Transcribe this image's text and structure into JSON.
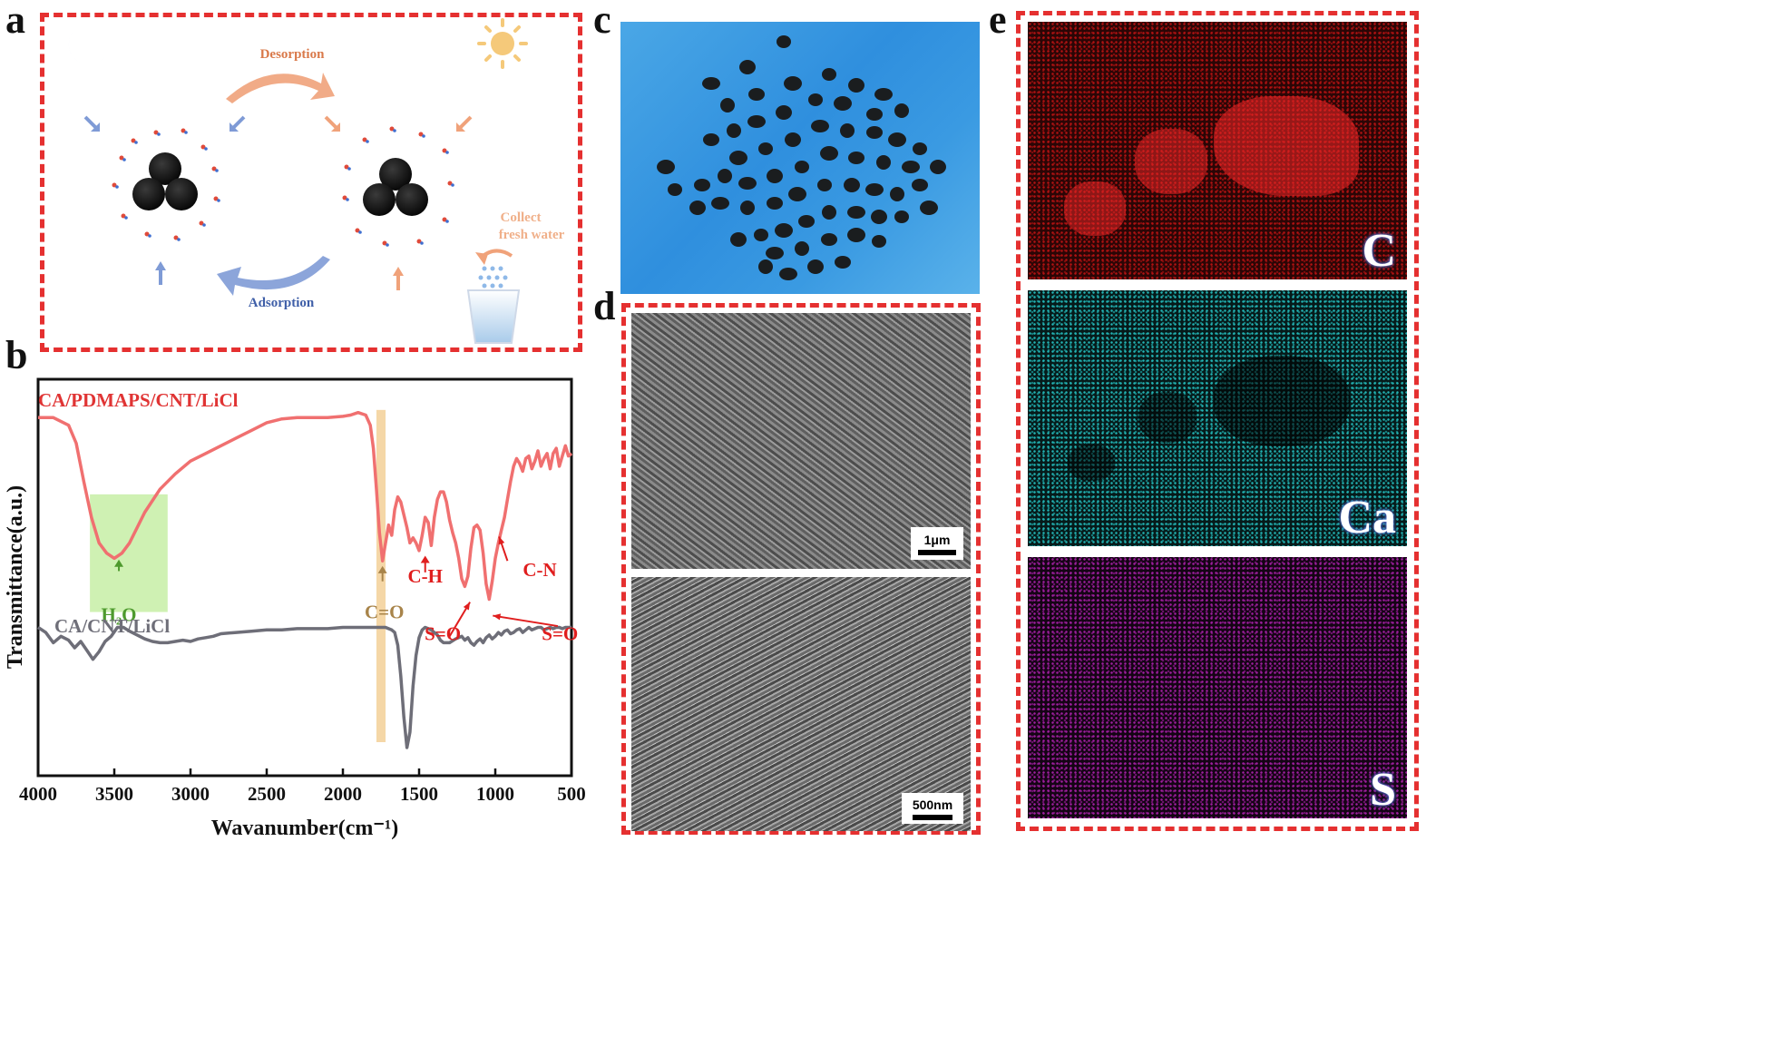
{
  "panels": {
    "a": "a",
    "b": "b",
    "c": "c",
    "d": "d",
    "e": "e"
  },
  "schematic": {
    "desorption": "Desorption",
    "adsorption": "Adsorption",
    "collect": "Collect",
    "fresh_water": "fresh water",
    "colors": {
      "desorption_arrow": "#f0a27a",
      "adsorption_arrow": "#7f9bd6",
      "frame": "#e53030"
    }
  },
  "sem": {
    "top_scale": "1μm",
    "bottom_scale": "500nm"
  },
  "eds_maps": [
    {
      "element": "C",
      "color": "#c41414"
    },
    {
      "element": "Ca",
      "color": "#23b5b5"
    },
    {
      "element": "S",
      "color": "#a01fa0"
    }
  ],
  "chart_data": {
    "type": "line",
    "xlabel": "Wavanumber(cm⁻¹)",
    "ylabel": "Transmittance(a.u.)",
    "xlim": [
      4000,
      500
    ],
    "x_reversed": true,
    "xticks": [
      4000,
      3500,
      3000,
      2500,
      2000,
      1500,
      1000,
      500
    ],
    "y_ticks_shown": false,
    "series": [
      {
        "name": "CA/PDMAPS/CNT/LiCl",
        "color": "#f07070",
        "x": [
          4000,
          3900,
          3800,
          3750,
          3700,
          3650,
          3600,
          3550,
          3500,
          3450,
          3400,
          3350,
          3300,
          3200,
          3100,
          3000,
          2900,
          2800,
          2700,
          2600,
          2500,
          2400,
          2300,
          2200,
          2100,
          2000,
          1950,
          1900,
          1850,
          1820,
          1800,
          1780,
          1760,
          1740,
          1720,
          1700,
          1680,
          1660,
          1640,
          1620,
          1600,
          1580,
          1560,
          1540,
          1520,
          1500,
          1480,
          1460,
          1440,
          1420,
          1400,
          1380,
          1360,
          1340,
          1320,
          1300,
          1280,
          1260,
          1240,
          1220,
          1200,
          1180,
          1160,
          1140,
          1120,
          1100,
          1080,
          1060,
          1040,
          1020,
          1000,
          980,
          960,
          940,
          920,
          900,
          880,
          860,
          840,
          820,
          800,
          780,
          760,
          740,
          720,
          700,
          680,
          660,
          640,
          620,
          600,
          580,
          560,
          540,
          520,
          500
        ],
        "y": [
          9.5,
          9.5,
          9.2,
          8.5,
          7.0,
          5.6,
          4.6,
          4.2,
          4.0,
          4.2,
          4.6,
          5.2,
          5.8,
          6.7,
          7.3,
          7.8,
          8.1,
          8.4,
          8.7,
          9.0,
          9.3,
          9.45,
          9.5,
          9.5,
          9.5,
          9.55,
          9.6,
          9.7,
          9.6,
          9.2,
          8.3,
          6.7,
          5.0,
          3.9,
          4.6,
          5.3,
          4.9,
          5.9,
          6.4,
          6.2,
          5.7,
          5.2,
          4.6,
          4.8,
          4.6,
          4.3,
          4.9,
          5.6,
          5.4,
          4.5,
          5.6,
          6.3,
          6.6,
          6.6,
          6.2,
          5.5,
          5.0,
          4.6,
          4.0,
          3.2,
          2.9,
          3.3,
          4.4,
          5.2,
          5.3,
          5.1,
          4.2,
          3.0,
          2.4,
          3.1,
          4.0,
          4.6,
          5.1,
          5.6,
          6.3,
          7.0,
          7.6,
          7.9,
          7.7,
          7.4,
          7.9,
          8.0,
          7.5,
          7.8,
          8.2,
          7.6,
          7.9,
          8.1,
          7.5,
          8.1,
          8.3,
          7.6,
          8.0,
          8.4,
          8.0,
          8.1
        ],
        "annotations": [
          {
            "label": "H₂O",
            "x": 3470
          },
          {
            "label": "C=O",
            "x": 1740
          },
          {
            "label": "C-H",
            "x": 1460
          },
          {
            "label": "S=O",
            "x": 1190
          },
          {
            "label": "S=O",
            "x": 1040
          },
          {
            "label": "C-N",
            "x": 970
          }
        ]
      },
      {
        "name": "CA/CNT/LiCl",
        "color": "#6e6e78",
        "x": [
          4000,
          3950,
          3900,
          3850,
          3800,
          3760,
          3720,
          3680,
          3640,
          3600,
          3560,
          3520,
          3480,
          3440,
          3400,
          3350,
          3300,
          3250,
          3200,
          3150,
          3100,
          3050,
          3000,
          2950,
          2900,
          2850,
          2800,
          2700,
          2600,
          2500,
          2400,
          2300,
          2200,
          2100,
          2000,
          1900,
          1850,
          1800,
          1760,
          1720,
          1700,
          1680,
          1660,
          1640,
          1620,
          1600,
          1580,
          1560,
          1540,
          1520,
          1500,
          1480,
          1460,
          1440,
          1420,
          1400,
          1380,
          1360,
          1340,
          1300,
          1260,
          1220,
          1200,
          1180,
          1160,
          1140,
          1120,
          1100,
          1080,
          1060,
          1040,
          1020,
          1000,
          980,
          960,
          940,
          920,
          900,
          880,
          860,
          840,
          820,
          800,
          780,
          760,
          740,
          720,
          700,
          680,
          660,
          640,
          620,
          600,
          580,
          560,
          540,
          520,
          500
        ],
        "y": [
          1.3,
          1.1,
          0.7,
          0.95,
          0.8,
          0.5,
          0.75,
          0.4,
          0.05,
          0.35,
          0.75,
          0.95,
          1.3,
          1.3,
          1.15,
          1.0,
          0.85,
          0.75,
          0.7,
          0.7,
          0.75,
          0.8,
          0.75,
          0.85,
          0.9,
          0.95,
          1.05,
          1.1,
          1.15,
          1.2,
          1.2,
          1.25,
          1.25,
          1.25,
          1.3,
          1.3,
          1.3,
          1.3,
          1.3,
          1.3,
          1.25,
          1.2,
          1.1,
          0.6,
          -0.6,
          -2.2,
          -3.4,
          -2.8,
          -1.0,
          0.2,
          0.9,
          1.2,
          1.3,
          1.25,
          1.2,
          1.1,
          1.0,
          0.8,
          0.7,
          0.7,
          0.85,
          0.95,
          0.8,
          0.9,
          0.7,
          0.6,
          0.75,
          0.85,
          0.7,
          0.9,
          1.0,
          0.85,
          0.95,
          1.1,
          1.0,
          1.15,
          1.2,
          1.05,
          1.1,
          1.2,
          1.25,
          1.1,
          1.2,
          1.3,
          1.2,
          1.25,
          1.3,
          1.3,
          1.2,
          1.25,
          1.3,
          1.25,
          1.3,
          1.3,
          1.25,
          1.3,
          1.3,
          1.3
        ]
      }
    ],
    "highlight_bands": [
      {
        "x": [
          3660,
          3150
        ],
        "color": "#b6ea8a"
      },
      {
        "x": [
          1780,
          1720
        ],
        "color": "#f2c98a"
      }
    ]
  }
}
